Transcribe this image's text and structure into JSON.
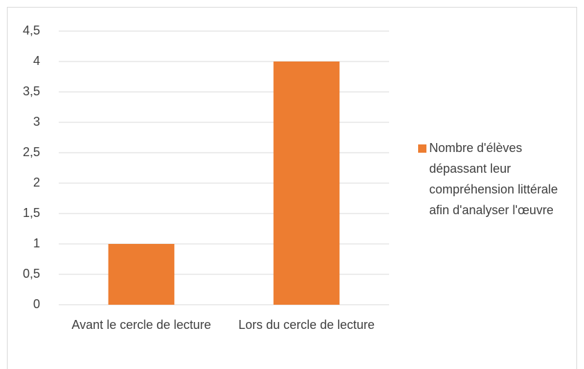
{
  "chart_data": {
    "type": "bar",
    "categories": [
      "Avant le cercle de lecture",
      "Lors du cercle de lecture"
    ],
    "series": [
      {
        "name": "Nombre d'élèves dépassant leur compréhension littérale afin d'analyser l'œuvre",
        "color": "#ed7d31",
        "values": [
          1,
          4
        ]
      }
    ],
    "ylim": [
      0,
      4.5
    ],
    "yticks": [
      0,
      {
        "value": 0.5,
        "label": "0,5"
      },
      1,
      {
        "value": 1.5,
        "label": "1,5"
      },
      2,
      {
        "value": 2.5,
        "label": "2,5"
      },
      3,
      {
        "value": 3.5,
        "label": "3,5"
      },
      4,
      {
        "value": 4.5,
        "label": "4,5"
      }
    ],
    "grid": true,
    "legend": "right"
  }
}
